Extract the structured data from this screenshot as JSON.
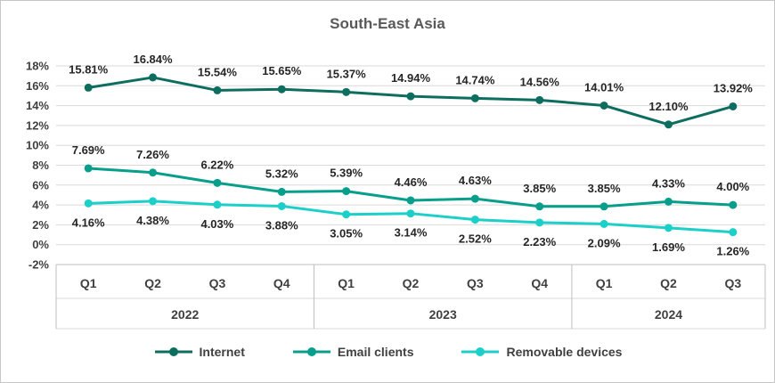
{
  "chart": {
    "title": "South-East Asia"
  },
  "chart_data": {
    "type": "line",
    "title": "South-East Asia",
    "categories": [
      "Q1",
      "Q2",
      "Q3",
      "Q4",
      "Q1",
      "Q2",
      "Q3",
      "Q4",
      "Q1",
      "Q2",
      "Q3"
    ],
    "year_groups": [
      {
        "label": "2022",
        "count": 4
      },
      {
        "label": "2023",
        "count": 4
      },
      {
        "label": "2024",
        "count": 3
      }
    ],
    "series": [
      {
        "name": "Internet",
        "color": "#0d6e5f",
        "label_position": "above",
        "values": [
          15.81,
          16.84,
          15.54,
          15.65,
          15.37,
          14.94,
          14.74,
          14.56,
          14.01,
          12.1,
          13.92
        ]
      },
      {
        "name": "Email clients",
        "color": "#089e8c",
        "label_position": "above",
        "values": [
          7.69,
          7.26,
          6.22,
          5.32,
          5.39,
          4.46,
          4.63,
          3.85,
          3.85,
          4.33,
          4.0
        ]
      },
      {
        "name": "Removable devices",
        "color": "#1ccfc9",
        "label_position": "below",
        "values": [
          4.16,
          4.38,
          4.03,
          3.88,
          3.05,
          3.14,
          2.52,
          2.23,
          2.09,
          1.69,
          1.26
        ]
      }
    ],
    "ylim": [
      -2,
      18
    ],
    "ytick_step": 2,
    "ytick_suffix": "%",
    "grid": true,
    "legend_position": "bottom",
    "colors": {
      "title": "#595959",
      "axis_text": "#404040",
      "data_label": "#262626",
      "gridline": "#d9d9d9",
      "band_line": "#bfbfbf",
      "border": "#c6c6c6"
    }
  }
}
